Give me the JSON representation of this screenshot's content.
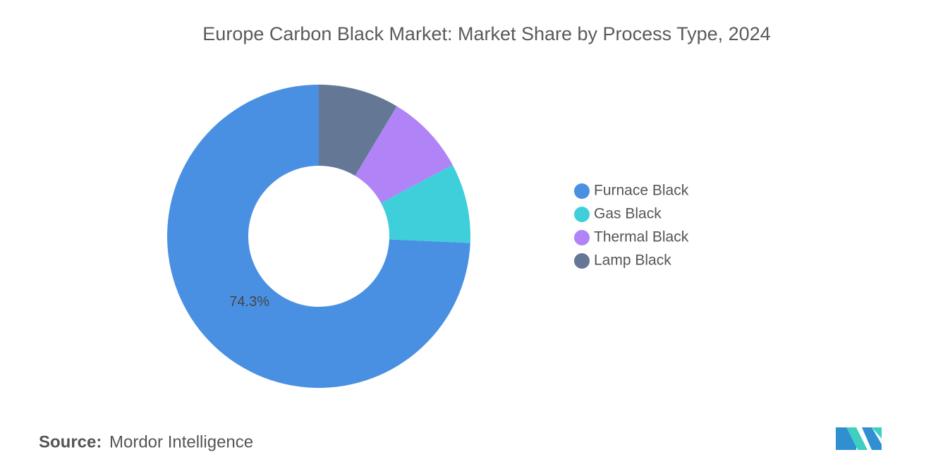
{
  "chart_data": {
    "type": "donut",
    "title": "Europe Carbon Black Market: Market Share by Process Type, 2024",
    "categories": [
      "Furnace Black",
      "Gas Black",
      "Thermal Black",
      "Lamp Black"
    ],
    "values": [
      74.3,
      8.5,
      8.6,
      8.6
    ],
    "value_labels": [
      "74.3%",
      null,
      null,
      null
    ],
    "colors": [
      "#4a90e2",
      "#3ecfda",
      "#b084f7",
      "#647896"
    ],
    "legend": "right"
  },
  "footer": {
    "source_label": "Source:",
    "source": "Mordor Intelligence"
  }
}
